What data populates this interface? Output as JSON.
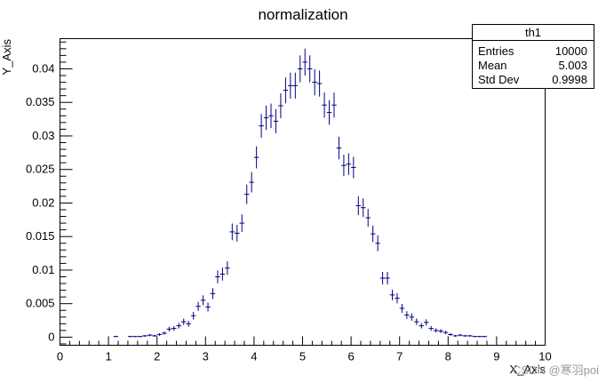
{
  "chart_data": {
    "type": "scatter",
    "title": "normalization",
    "xlabel": "X_Axis",
    "ylabel": "Y_Axis",
    "xlim": [
      0,
      10
    ],
    "ylim": [
      -0.0012,
      0.0445
    ],
    "x_ticks": [
      0,
      1,
      2,
      3,
      4,
      5,
      6,
      7,
      8,
      9,
      10
    ],
    "x_tick_labels": [
      "0",
      "1",
      "2",
      "3",
      "4",
      "5",
      "6",
      "7",
      "8",
      "9",
      "10"
    ],
    "y_ticks": [
      0,
      0.005,
      0.01,
      0.015,
      0.02,
      0.025,
      0.03,
      0.035,
      0.04
    ],
    "y_tick_labels": [
      "0",
      "0.005",
      "0.01",
      "0.015",
      "0.02",
      "0.025",
      "0.03",
      "0.035",
      "0.04"
    ],
    "grid": false,
    "bin_width": 0.1,
    "series": [
      {
        "name": "th1",
        "color": "#000080",
        "x": [
          1.15,
          1.45,
          1.55,
          1.65,
          1.75,
          1.85,
          1.95,
          2.05,
          2.15,
          2.25,
          2.35,
          2.45,
          2.55,
          2.65,
          2.75,
          2.85,
          2.95,
          3.05,
          3.15,
          3.25,
          3.35,
          3.45,
          3.55,
          3.65,
          3.75,
          3.85,
          3.95,
          4.05,
          4.15,
          4.25,
          4.35,
          4.45,
          4.55,
          4.65,
          4.75,
          4.85,
          4.95,
          5.05,
          5.15,
          5.25,
          5.35,
          5.45,
          5.55,
          5.65,
          5.75,
          5.85,
          5.95,
          6.05,
          6.15,
          6.25,
          6.35,
          6.45,
          6.55,
          6.65,
          6.75,
          6.85,
          6.95,
          7.05,
          7.15,
          7.25,
          7.35,
          7.45,
          7.55,
          7.65,
          7.75,
          7.85,
          7.95,
          8.05,
          8.15,
          8.25,
          8.35,
          8.45,
          8.55,
          8.65,
          8.75
        ],
        "y": [
          0.0001,
          0.0001,
          0.0001,
          0.0001,
          0.0002,
          0.0003,
          0.0002,
          0.0004,
          0.0006,
          0.0012,
          0.0013,
          0.0017,
          0.0023,
          0.002,
          0.0032,
          0.0046,
          0.0055,
          0.0045,
          0.0065,
          0.009,
          0.0094,
          0.0103,
          0.0157,
          0.0155,
          0.017,
          0.0213,
          0.0231,
          0.0268,
          0.0315,
          0.0327,
          0.033,
          0.0322,
          0.0345,
          0.0368,
          0.0375,
          0.0375,
          0.04,
          0.041,
          0.04,
          0.038,
          0.0378,
          0.0346,
          0.0335,
          0.0346,
          0.0282,
          0.0256,
          0.0258,
          0.0253,
          0.0196,
          0.0193,
          0.0178,
          0.0154,
          0.014,
          0.0088,
          0.0088,
          0.0063,
          0.0058,
          0.0043,
          0.0033,
          0.003,
          0.0023,
          0.0017,
          0.0022,
          0.0013,
          0.001,
          0.0009,
          0.0007,
          0.0004,
          0.0002,
          0.0003,
          0.0002,
          0.0002,
          0.0001,
          0.0001,
          0.0001
        ],
        "yerr": [
          0.0001,
          0.0001,
          0.0001,
          0.0001,
          0.00014,
          0.00017,
          0.00014,
          0.0002,
          0.00024,
          0.00035,
          0.00036,
          0.00041,
          0.00048,
          0.00045,
          0.00057,
          0.00068,
          0.00074,
          0.00067,
          0.00081,
          0.00095,
          0.00097,
          0.00101,
          0.00125,
          0.00124,
          0.0013,
          0.00146,
          0.00152,
          0.00164,
          0.00177,
          0.00181,
          0.00182,
          0.00179,
          0.00186,
          0.00192,
          0.00194,
          0.00194,
          0.002,
          0.00202,
          0.002,
          0.00195,
          0.00194,
          0.00186,
          0.00183,
          0.00186,
          0.00168,
          0.0016,
          0.00161,
          0.00159,
          0.0014,
          0.00139,
          0.00133,
          0.00124,
          0.00118,
          0.00094,
          0.00094,
          0.00079,
          0.00076,
          0.00066,
          0.00057,
          0.00055,
          0.00048,
          0.00041,
          0.00047,
          0.00036,
          0.00032,
          0.0003,
          0.00026,
          0.0002,
          0.00014,
          0.00017,
          0.00014,
          0.00014,
          0.0001,
          0.0001,
          0.0001
        ]
      }
    ]
  },
  "stats_box": {
    "title": "th1",
    "rows": [
      {
        "label": "Entries",
        "value": "10000"
      },
      {
        "label": "Mean",
        "value": "5.003"
      },
      {
        "label": "Std Dev",
        "value": "0.9998"
      }
    ]
  },
  "watermark": "CSDN @寒羽poi"
}
